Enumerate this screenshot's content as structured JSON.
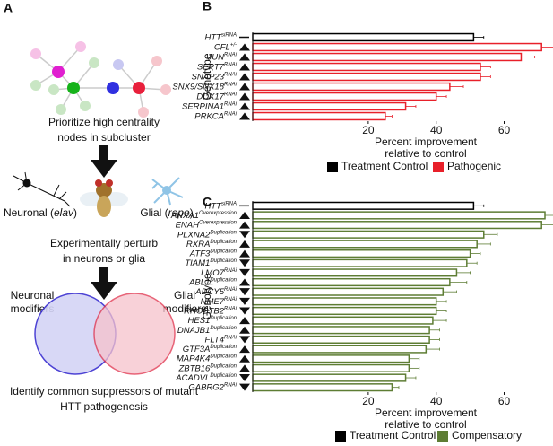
{
  "panel_a": {
    "panel_label": "A",
    "step1": [
      "Prioritize high centrality",
      "nodes in subcluster"
    ],
    "neuronal": [
      "Neuronal (",
      "elav",
      ")"
    ],
    "glial": [
      "Glial (",
      "repo",
      ")"
    ],
    "step2": [
      "Experimentally perturb",
      "in neurons or glia"
    ],
    "venn_left": [
      "Neuronal",
      "modifiers"
    ],
    "venn_right": [
      "Glial",
      "modifiers"
    ],
    "step3": [
      "Identify common suppressors of mutant",
      "HTT pathogenesis"
    ]
  },
  "chart_data": [
    {
      "type": "hbar",
      "panel_label": "B",
      "ylabel": "Genotype",
      "xlabel": [
        "Percent improvement",
        "relative to control"
      ],
      "categories": [
        "HTT",
        "CFL",
        "JUN",
        "SEPT7",
        "SNAP23",
        "SNX9/SNX18",
        "DDX17",
        "SERPINA1",
        "PRKCA"
      ],
      "superscripts": [
        "siRNA",
        "+/-",
        "RNAi",
        "RNAi",
        "RNAi",
        "RNAi",
        "RNAi",
        "RNAi",
        "RNAi"
      ],
      "markers": [
        "dash",
        "up",
        "up",
        "up",
        "up",
        "up",
        "up",
        "up",
        "up"
      ],
      "series": [
        {
          "name": "Treatment Control",
          "color": "#000000",
          "values": [
            51,
            null,
            null,
            null,
            null,
            null,
            null,
            null,
            null
          ],
          "errors": [
            3,
            null,
            null,
            null,
            null,
            null,
            null,
            null,
            null
          ]
        },
        {
          "name": "Pathogenic",
          "color": "#e8202a",
          "values": [
            null,
            71,
            65,
            53,
            53,
            44,
            40,
            31,
            25
          ],
          "errors": [
            null,
            4,
            4,
            3,
            3,
            4,
            3,
            3,
            2
          ]
        }
      ],
      "xlim": [
        -14,
        72
      ],
      "xticks": [
        20,
        40,
        60
      ]
    },
    {
      "type": "hbar",
      "panel_label": "C",
      "ylabel": "Genotype",
      "xlabel": [
        "Percent improvement",
        "relative to control"
      ],
      "categories": [
        "HTT",
        "ANXA1",
        "ENAH",
        "PLXNA2",
        "RXRA",
        "ATF3",
        "TIAM1",
        "LMO7",
        "ABL1",
        "ADCY5",
        "NME7",
        "RHOBTB2",
        "HES1",
        "DNAJB1",
        "FLT4",
        "GTF3A",
        "MAP4K4",
        "ZBTB16",
        "ACADVL",
        "GABRG2"
      ],
      "superscripts": [
        "siRNA",
        "Overexpression",
        "Overexpression",
        "Duplication",
        "Duplication",
        "Duplication",
        "Duplication",
        "RNAi",
        "Duplication",
        "RNAi",
        "RNAi",
        "RNAi",
        "Duplication",
        "Duplication",
        "RNAi",
        "Duplication",
        "Duplication",
        "Duplication",
        "Duplication",
        "RNAi"
      ],
      "markers": [
        "dash",
        "up",
        "up",
        "down",
        "up",
        "up",
        "down",
        "down",
        "up",
        "down",
        "down",
        "down",
        "up",
        "up",
        "down",
        "up",
        "up",
        "up",
        "down",
        "down"
      ],
      "series": [
        {
          "name": "Treatment Control",
          "color": "#000000",
          "values": [
            51,
            null,
            null,
            null,
            null,
            null,
            null,
            null,
            null,
            null,
            null,
            null,
            null,
            null,
            null,
            null,
            null,
            null,
            null,
            null
          ],
          "errors": [
            3,
            null,
            null,
            null,
            null,
            null,
            null,
            null,
            null,
            null,
            null,
            null,
            null,
            null,
            null,
            null,
            null,
            null,
            null,
            null
          ]
        },
        {
          "name": "Compensatory",
          "color": "#5e7d34",
          "values": [
            null,
            72,
            71,
            54,
            52,
            50,
            49,
            46,
            44,
            42,
            40,
            40,
            39,
            38,
            38,
            37,
            32,
            32,
            31,
            27
          ],
          "errors": [
            null,
            6,
            5,
            4,
            4,
            3,
            3,
            4,
            5,
            4,
            3,
            3,
            4,
            3,
            3,
            4,
            3,
            3,
            3,
            2
          ]
        }
      ],
      "xlim": [
        -14,
        72
      ],
      "xticks": [
        20,
        40,
        60
      ]
    }
  ]
}
